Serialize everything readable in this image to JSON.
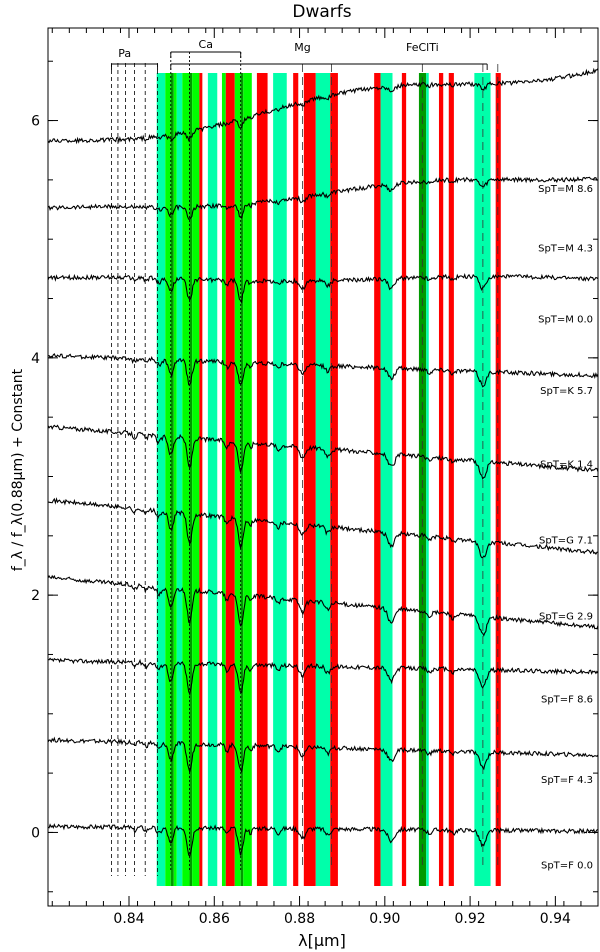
{
  "chart_data": {
    "type": "line",
    "title": "Dwarfs",
    "xlabel": "λ[μm]",
    "ylabel": "f_λ / f_λ(0.88μm) + Constant",
    "xlim": [
      0.821,
      0.95
    ],
    "ylim": [
      -0.62,
      6.78
    ],
    "x_ticks": [
      0.84,
      0.86,
      0.88,
      0.9,
      0.92,
      0.94
    ],
    "x_tick_labels": [
      "0.84",
      "0.86",
      "0.88",
      "0.90",
      "0.92",
      "0.94"
    ],
    "y_ticks": [
      0,
      2,
      4,
      6
    ],
    "y_tick_labels": [
      "0",
      "2",
      "4",
      "6"
    ],
    "line_groups": [
      {
        "label": "Pa",
        "x": [
          0.8365,
          0.8415
        ],
        "lines": [
          0.8359,
          0.8374,
          0.8392,
          0.8413,
          0.8438,
          0.8467
        ]
      },
      {
        "label": "Ca",
        "x": [
          0.8498,
          0.8662
        ],
        "lines": [
          0.8498,
          0.8542,
          0.8662
        ]
      },
      {
        "label": "Mg",
        "x": [
          0.8807,
          0.8807
        ],
        "lines": [
          0.8807
        ]
      },
      {
        "label": "FeClTi",
        "x": [
          0.9088,
          0.9088
        ],
        "lines": [
          0.9088
        ]
      }
    ],
    "bands": [
      {
        "x": [
          0.8465,
          0.8485
        ],
        "color": "#00ffaa"
      },
      {
        "x": [
          0.8485,
          0.8498
        ],
        "color": "#00ff00"
      },
      {
        "x": [
          0.8498,
          0.8505
        ],
        "color": "#009900"
      },
      {
        "x": [
          0.8505,
          0.8512
        ],
        "color": "#00ff00"
      },
      {
        "x": [
          0.8512,
          0.8525
        ],
        "color": "#00ffaa"
      },
      {
        "x": [
          0.8525,
          0.8542
        ],
        "color": "#00ff00"
      },
      {
        "x": [
          0.8542,
          0.8548
        ],
        "color": "#009900"
      },
      {
        "x": [
          0.8548,
          0.8565
        ],
        "color": "#00ff00"
      },
      {
        "x": [
          0.8565,
          0.8572
        ],
        "color": "#ff0000"
      },
      {
        "x": [
          0.8585,
          0.8607
        ],
        "color": "#00ffaa"
      },
      {
        "x": [
          0.8618,
          0.8627
        ],
        "color": "#00ff00"
      },
      {
        "x": [
          0.8627,
          0.8648
        ],
        "color": "#ff0000"
      },
      {
        "x": [
          0.8648,
          0.8662
        ],
        "color": "#00ff00"
      },
      {
        "x": [
          0.8662,
          0.8668
        ],
        "color": "#009900"
      },
      {
        "x": [
          0.8668,
          0.8688
        ],
        "color": "#00ff00"
      },
      {
        "x": [
          0.87,
          0.8725
        ],
        "color": "#ff0000"
      },
      {
        "x": [
          0.8738,
          0.877
        ],
        "color": "#00ffaa"
      },
      {
        "x": [
          0.8785,
          0.8797
        ],
        "color": "#ff0000"
      },
      {
        "x": [
          0.881,
          0.8838
        ],
        "color": "#ff0000"
      },
      {
        "x": [
          0.8838,
          0.8872
        ],
        "color": "#00ffaa"
      },
      {
        "x": [
          0.8872,
          0.889
        ],
        "color": "#ff0000"
      },
      {
        "x": [
          0.8975,
          0.899
        ],
        "color": "#ff0000"
      },
      {
        "x": [
          0.899,
          0.9018
        ],
        "color": "#00ffaa"
      },
      {
        "x": [
          0.904,
          0.905
        ],
        "color": "#ff0000"
      },
      {
        "x": [
          0.908,
          0.9097
        ],
        "color": "#009900"
      },
      {
        "x": [
          0.9097,
          0.9103
        ],
        "color": "#00ffaa"
      },
      {
        "x": [
          0.9127,
          0.9137
        ],
        "color": "#ff0000"
      },
      {
        "x": [
          0.915,
          0.9162
        ],
        "color": "#ff0000"
      },
      {
        "x": [
          0.921,
          0.9248
        ],
        "color": "#00ffaa"
      },
      {
        "x": [
          0.926,
          0.9272
        ],
        "color": "#ff0000"
      }
    ],
    "band_dashes": [
      0.8875,
      0.9265,
      0.923
    ],
    "series": [
      {
        "name": "SpT=F 0.0",
        "offset": 0.0,
        "start": 0.05,
        "end": 0.01,
        "depth": 1.0,
        "tilt": 0.0
      },
      {
        "name": "SpT=F 4.3",
        "offset": 0.72,
        "start": 0.78,
        "end": 0.65,
        "depth": 1.0,
        "tilt": 0.0
      },
      {
        "name": "SpT=F 8.6",
        "offset": 1.4,
        "start": 1.45,
        "end": 1.35,
        "depth": 1.1,
        "tilt": 0.0
      },
      {
        "name": "SpT=G 2.9",
        "offset": 2.1,
        "start": 2.15,
        "end": 1.73,
        "depth": 1.2,
        "tilt": 0.0
      },
      {
        "name": "SpT=G 7.1",
        "offset": 2.74,
        "start": 2.8,
        "end": 2.36,
        "depth": 1.1,
        "tilt": 0.0
      },
      {
        "name": "SpT=K 1.4",
        "offset": 3.38,
        "start": 3.42,
        "end": 3.05,
        "depth": 1.1,
        "tilt": 0.0
      },
      {
        "name": "SpT=K 5.7",
        "offset": 4.0,
        "start": 4.02,
        "end": 3.85,
        "depth": 0.9,
        "tilt": 0.0
      },
      {
        "name": "SpT=M 0.0",
        "offset": 4.6,
        "start": 4.66,
        "end": 4.67,
        "depth": 0.8,
        "tilt": 0.15
      },
      {
        "name": "SpT=M 4.3",
        "offset": 5.2,
        "start": 5.22,
        "end": 5.55,
        "depth": 0.5,
        "tilt": 0.35
      },
      {
        "name": "SpT=M 8.6",
        "offset": 5.7,
        "start": 5.8,
        "end": 6.48,
        "depth": 0.3,
        "tilt": 0.6
      }
    ]
  }
}
